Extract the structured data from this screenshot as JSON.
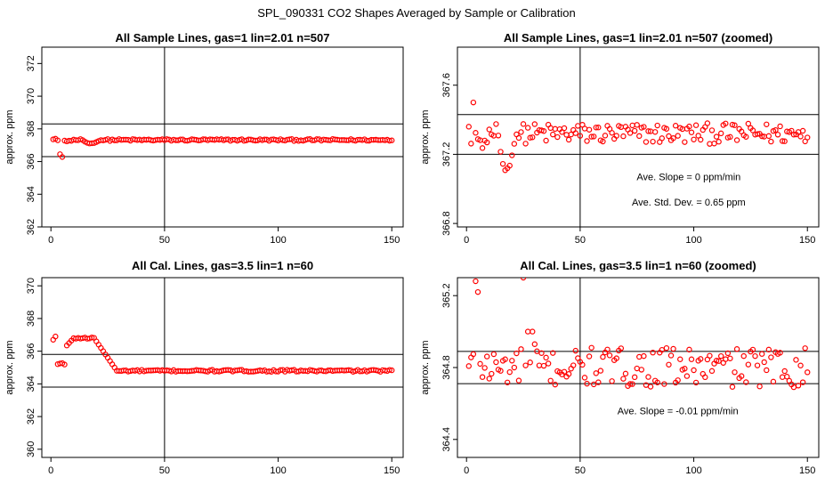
{
  "figure_title": "SPL_090331  CO2 Shapes Averaged by Sample or Calibration",
  "colors": {
    "points": "#ff0000",
    "lines": "#000000",
    "background": "#ffffff"
  },
  "chart_data": [
    {
      "type": "scatter",
      "title": "All Sample Lines, gas=1 lin=2.01 n=507",
      "xlabel": "",
      "ylabel": "approx. ppm",
      "xlim": [
        -4,
        155
      ],
      "ylim": [
        362,
        373
      ],
      "xticks": [
        0,
        50,
        100,
        150
      ],
      "yticks": [
        362,
        364,
        366,
        368,
        370,
        372
      ],
      "vline": 50,
      "hlines": [
        366.3,
        368.3
      ],
      "grid": false,
      "series": [
        {
          "generator": "sample",
          "zoomed": false
        }
      ],
      "annotations": []
    },
    {
      "type": "scatter",
      "title": "All Sample Lines, gas=1 lin=2.01 n=507 (zoomed)",
      "xlabel": "",
      "ylabel": "approx. ppm",
      "xlim": [
        -4,
        155
      ],
      "ylim": [
        366.78,
        367.82
      ],
      "xticks": [
        0,
        50,
        100,
        150
      ],
      "yticks": [
        366.8,
        367.2,
        367.6
      ],
      "vline": 50,
      "hlines": [
        367.2,
        367.43
      ],
      "grid": false,
      "series": [
        {
          "generator": "sample",
          "zoomed": true
        }
      ],
      "annotations": [
        "Ave. Slope =  0  ppm/min",
        "Ave. Std. Dev. =  0.65  ppm"
      ]
    },
    {
      "type": "scatter",
      "title": "All Cal. Lines, gas=3.5 lin=1 n=60",
      "xlabel": "",
      "ylabel": "approx. ppm",
      "xlim": [
        -4,
        155
      ],
      "ylim": [
        359.5,
        370.5
      ],
      "xticks": [
        0,
        50,
        100,
        150
      ],
      "yticks": [
        360,
        362,
        364,
        366,
        368,
        370
      ],
      "vline": 50,
      "hlines": [
        363.8,
        365.8
      ],
      "grid": false,
      "series": [
        {
          "generator": "cal",
          "zoomed": false
        }
      ],
      "annotations": []
    },
    {
      "type": "scatter",
      "title": "All Cal. Lines, gas=3.5 lin=1 n=60 (zoomed)",
      "xlabel": "",
      "ylabel": "approx. ppm",
      "xlim": [
        -4,
        155
      ],
      "ylim": [
        364.3,
        365.3
      ],
      "xticks": [
        0,
        50,
        100,
        150
      ],
      "yticks": [
        364.4,
        364.8,
        365.2
      ],
      "vline": 50,
      "hlines": [
        364.71,
        364.89
      ],
      "grid": false,
      "series": [
        {
          "generator": "cal",
          "zoomed": true
        }
      ],
      "annotations": [
        "Ave. Slope =  -0.01  ppm/min"
      ]
    }
  ]
}
